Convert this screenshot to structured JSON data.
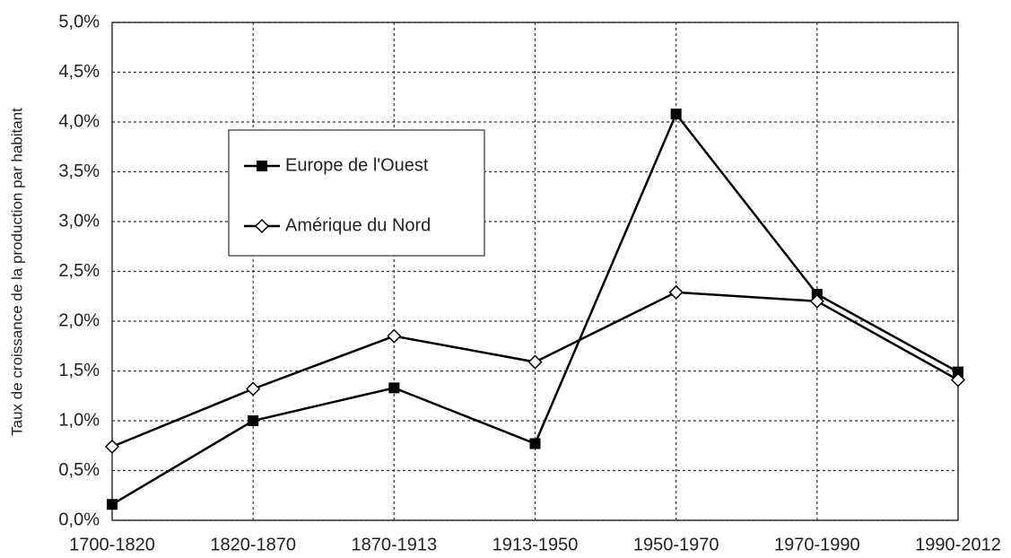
{
  "chart_data": {
    "type": "line",
    "ylabel": "Taux de croissance de la production par habitant",
    "categories": [
      "1700-1820",
      "1820-1870",
      "1870-1913",
      "1913-1950",
      "1950-1970",
      "1970-1990",
      "1990-2012"
    ],
    "series": [
      {
        "name": "Europe de l'Ouest",
        "color": "#000000",
        "marker": "square",
        "values": [
          0.16,
          1.0,
          1.33,
          0.77,
          4.08,
          2.27,
          1.49
        ]
      },
      {
        "name": "Amérique du Nord",
        "color": "#000000",
        "marker": "diamond",
        "values": [
          0.74,
          1.32,
          1.85,
          1.59,
          2.29,
          2.2,
          1.41
        ]
      }
    ],
    "ylim": [
      0,
      5
    ],
    "yticks": [
      {
        "value": 0,
        "label": "0,0%"
      },
      {
        "value": 0.5,
        "label": "0,5%"
      },
      {
        "value": 1,
        "label": "1,0%"
      },
      {
        "value": 1.5,
        "label": "1,5%"
      },
      {
        "value": 2,
        "label": "2,0%"
      },
      {
        "value": 2.5,
        "label": "2,5%"
      },
      {
        "value": 3,
        "label": "3,0%"
      },
      {
        "value": 3.5,
        "label": "3,5%"
      },
      {
        "value": 4,
        "label": "4,0%"
      },
      {
        "value": 4.5,
        "label": "4,5%"
      },
      {
        "value": 5,
        "label": "5,0%"
      }
    ],
    "grid": true
  }
}
